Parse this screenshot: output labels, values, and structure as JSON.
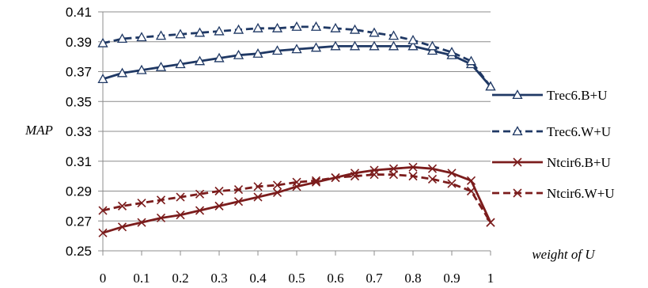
{
  "chart_data": {
    "type": "line",
    "xlabel": "weight of U",
    "ylabel": "MAP",
    "ylim": [
      0.25,
      0.41
    ],
    "y_ticks": [
      "0.25",
      "0.27",
      "0.29",
      "0.31",
      "0.33",
      "0.35",
      "0.37",
      "0.39",
      "0.41"
    ],
    "xlim": [
      0,
      1
    ],
    "x_ticks": [
      "0",
      "0.1",
      "0.2",
      "0.3",
      "0.4",
      "0.5",
      "0.6",
      "0.7",
      "0.8",
      "0.9",
      "1"
    ],
    "x": [
      0,
      0.05,
      0.1,
      0.15,
      0.2,
      0.25,
      0.3,
      0.35,
      0.4,
      0.45,
      0.5,
      0.55,
      0.6,
      0.65,
      0.7,
      0.75,
      0.8,
      0.85,
      0.9,
      0.95,
      1
    ],
    "grid": "horizontal",
    "legend_position": "right",
    "series": [
      {
        "name": "Trec6.B+U",
        "color": "#1F3864",
        "line_style": "solid",
        "marker": "triangle",
        "values": [
          0.365,
          0.369,
          0.371,
          0.373,
          0.375,
          0.377,
          0.379,
          0.381,
          0.382,
          0.384,
          0.385,
          0.386,
          0.387,
          0.387,
          0.387,
          0.387,
          0.387,
          0.384,
          0.381,
          0.375,
          0.36
        ]
      },
      {
        "name": "Trec6.W+U",
        "color": "#1F3864",
        "line_style": "dashed",
        "marker": "triangle",
        "values": [
          0.389,
          0.392,
          0.393,
          0.394,
          0.395,
          0.396,
          0.397,
          0.398,
          0.399,
          0.399,
          0.4,
          0.4,
          0.399,
          0.398,
          0.396,
          0.394,
          0.391,
          0.387,
          0.383,
          0.377,
          0.36
        ]
      },
      {
        "name": "Ntcir6.B+U",
        "color": "#7B1C1C",
        "line_style": "solid",
        "marker": "x",
        "values": [
          0.262,
          0.266,
          0.269,
          0.272,
          0.274,
          0.277,
          0.28,
          0.283,
          0.286,
          0.289,
          0.293,
          0.296,
          0.299,
          0.302,
          0.304,
          0.305,
          0.306,
          0.305,
          0.302,
          0.297,
          0.269
        ]
      },
      {
        "name": "Ntcir6.W+U",
        "color": "#7B1C1C",
        "line_style": "dashed",
        "marker": "x",
        "values": [
          0.277,
          0.28,
          0.282,
          0.284,
          0.286,
          0.288,
          0.29,
          0.291,
          0.293,
          0.294,
          0.296,
          0.297,
          0.299,
          0.3,
          0.301,
          0.301,
          0.3,
          0.298,
          0.295,
          0.29,
          0.269
        ]
      }
    ]
  }
}
